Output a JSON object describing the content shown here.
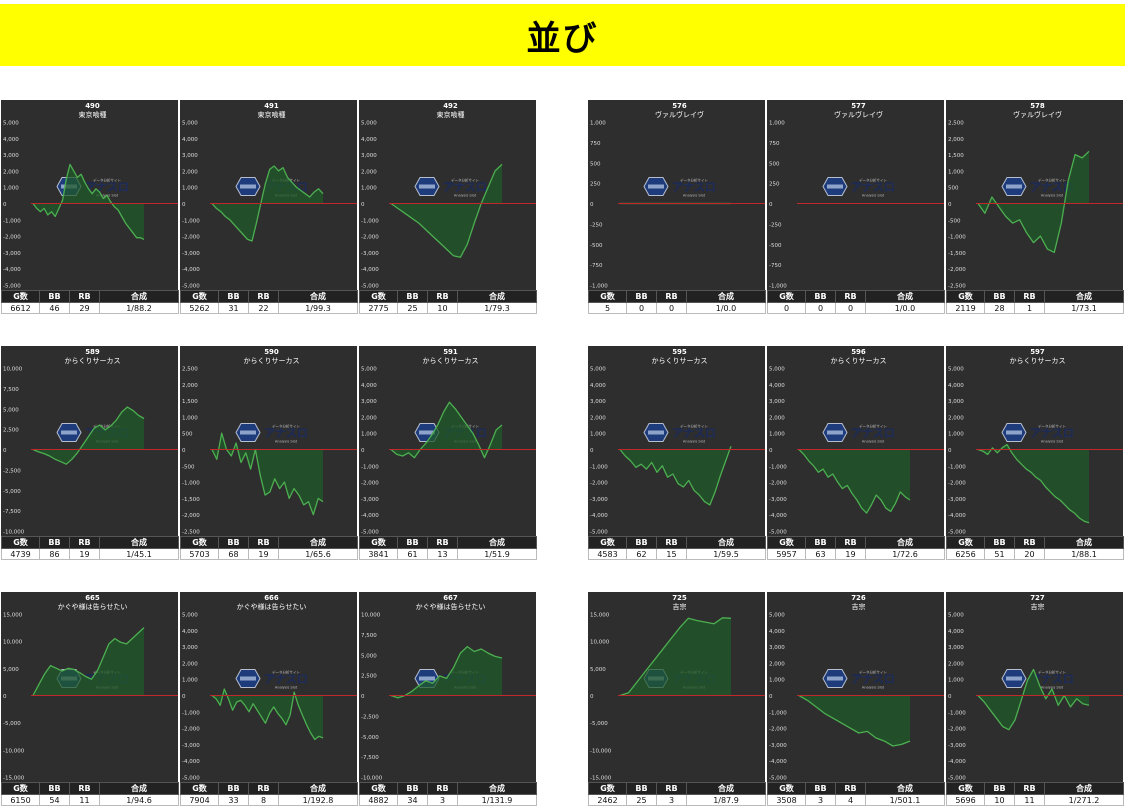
{
  "banner": {
    "title": "並び"
  },
  "table_headers": [
    "G数",
    "BB",
    "RB",
    "合成"
  ],
  "watermark": {
    "text": "アナスロ",
    "sub": "Analysis Slot",
    "top": "データ分析サイト"
  },
  "colors": {
    "banner": "#ffff00",
    "panel_bg": "#2e2e2e",
    "line": "#4caf50",
    "fill": "#1f5a2a",
    "zero_line": "#c0282b"
  },
  "chart_data": [
    {
      "type": "area",
      "title": "490",
      "subtitle": "東京喰種",
      "ylim": [
        -5000,
        5000
      ],
      "ticks": [
        5000,
        4000,
        3000,
        2000,
        1000,
        0,
        -1000,
        -2000,
        -3000,
        -4000,
        -5000
      ],
      "tick_labels": [
        "5,000",
        "4,000",
        "3,000",
        "2,000",
        "1,000",
        "0",
        "-1,000",
        "-2,000",
        "-3,000",
        "-4,000",
        "-5,000"
      ],
      "y": [
        0,
        -300,
        -500,
        -300,
        -700,
        -500,
        -800,
        -300,
        200,
        1500,
        2400,
        2000,
        1600,
        1800,
        1300,
        900,
        600,
        900,
        700,
        300,
        500,
        100,
        -200,
        -400,
        -800,
        -1200,
        -1500,
        -1800,
        -2100,
        -2100,
        -2200
      ],
      "stats": {
        "g": "6612",
        "bb": "46",
        "rb": "29",
        "ratio": "1/88.2"
      }
    },
    {
      "type": "area",
      "title": "491",
      "subtitle": "東京喰種",
      "ylim": [
        -5000,
        5000
      ],
      "ticks": [
        5000,
        4000,
        3000,
        2000,
        1000,
        0,
        -1000,
        -2000,
        -3000,
        -4000,
        -5000
      ],
      "tick_labels": [
        "5,000",
        "4,000",
        "3,000",
        "2,000",
        "1,000",
        "0",
        "-1,000",
        "-2,000",
        "-3,000",
        "-4,000",
        "-5,000"
      ],
      "y": [
        0,
        -300,
        -500,
        -800,
        -1000,
        -1300,
        -1600,
        -1900,
        -2200,
        -2300,
        -1200,
        0,
        1200,
        2100,
        2300,
        2000,
        2200,
        1600,
        1300,
        1000,
        800,
        600,
        400,
        700,
        900,
        600
      ],
      "stats": {
        "g": "5262",
        "bb": "31",
        "rb": "22",
        "ratio": "1/99.3"
      }
    },
    {
      "type": "area",
      "title": "492",
      "subtitle": "東京喰種",
      "ylim": [
        -5000,
        5000
      ],
      "ticks": [
        5000,
        4000,
        3000,
        2000,
        1000,
        0,
        -1000,
        -2000,
        -3000,
        -4000,
        -5000
      ],
      "tick_labels": [
        "5,000",
        "4,000",
        "3,000",
        "2,000",
        "1,000",
        "0",
        "-1,000",
        "-2,000",
        "-3,000",
        "-4,000",
        "-5,000"
      ],
      "y": [
        0,
        -300,
        -600,
        -900,
        -1200,
        -1600,
        -2000,
        -2400,
        -2800,
        -3200,
        -3300,
        -2500,
        -1200,
        0,
        1000,
        2000,
        2400
      ],
      "stats": {
        "g": "2775",
        "bb": "25",
        "rb": "10",
        "ratio": "1/79.3"
      }
    },
    {
      "type": "area",
      "title": "576",
      "subtitle": "ヴァルヴレイヴ",
      "ylim": [
        -1000,
        1000
      ],
      "ticks": [
        1000,
        750,
        500,
        250,
        0,
        -250,
        -500,
        -750,
        -1000
      ],
      "tick_labels": [
        "1,000",
        "750",
        "500",
        "250",
        "0",
        "-250",
        "-500",
        "-750",
        "-1,000"
      ],
      "y": [
        0,
        0
      ],
      "stats": {
        "g": "5",
        "bb": "0",
        "rb": "0",
        "ratio": "1/0.0"
      }
    },
    {
      "type": "area",
      "title": "577",
      "subtitle": "ヴァルヴレイヴ",
      "ylim": [
        -1000,
        1000
      ],
      "ticks": [
        1000,
        750,
        500,
        250,
        0,
        -250,
        -500,
        -750,
        -1000
      ],
      "tick_labels": [
        "1,000",
        "750",
        "500",
        "250",
        "0",
        "-250",
        "-500",
        "-750",
        "-1,000"
      ],
      "y": [],
      "stats": {
        "g": "0",
        "bb": "0",
        "rb": "0",
        "ratio": "1/0.0"
      }
    },
    {
      "type": "area",
      "title": "578",
      "subtitle": "ヴァルヴレイヴ",
      "ylim": [
        -2500,
        2500
      ],
      "ticks": [
        2500,
        2000,
        1500,
        1000,
        500,
        0,
        -500,
        -1000,
        -1500,
        -2000,
        -2500
      ],
      "tick_labels": [
        "2,500",
        "2,000",
        "1,500",
        "1,000",
        "500",
        "0",
        "-500",
        "-1,000",
        "-1,500",
        "-2,000",
        "-2,500"
      ],
      "y": [
        0,
        -300,
        200,
        -100,
        -400,
        -600,
        -500,
        -900,
        -1200,
        -1000,
        -1400,
        -1500,
        -600,
        700,
        1500,
        1400,
        1600
      ],
      "stats": {
        "g": "2119",
        "bb": "28",
        "rb": "1",
        "ratio": "1/73.1"
      }
    },
    {
      "type": "area",
      "title": "589",
      "subtitle": "からくりサーカス",
      "ylim": [
        -10000,
        10000
      ],
      "ticks": [
        10000,
        7500,
        5000,
        2500,
        0,
        -2500,
        -5000,
        -7500,
        -10000
      ],
      "tick_labels": [
        "10,000",
        "7,500",
        "5,000",
        "2,500",
        "0",
        "-2,500",
        "-5,000",
        "-7,500",
        "-10,000"
      ],
      "y": [
        0,
        -300,
        -500,
        -800,
        -1200,
        -1500,
        -1800,
        -1200,
        -400,
        600,
        1600,
        2600,
        3000,
        2400,
        2900,
        3600,
        4600,
        5200,
        4800,
        4200,
        3800
      ],
      "stats": {
        "g": "4739",
        "bb": "86",
        "rb": "19",
        "ratio": "1/45.1"
      }
    },
    {
      "type": "area",
      "title": "590",
      "subtitle": "からくりサーカス",
      "ylim": [
        -2500,
        2500
      ],
      "ticks": [
        2500,
        2000,
        1500,
        1000,
        500,
        0,
        -500,
        -1000,
        -1500,
        -2000,
        -2500
      ],
      "tick_labels": [
        "2,500",
        "2,000",
        "1,500",
        "1,000",
        "500",
        "0",
        "-500",
        "-1,000",
        "-1,500",
        "-2,000",
        "-2,500"
      ],
      "y": [
        0,
        -300,
        500,
        0,
        -200,
        200,
        -400,
        -100,
        -600,
        0,
        -800,
        -1400,
        -1300,
        -900,
        -1200,
        -1000,
        -1500,
        -1200,
        -1400,
        -1700,
        -1600,
        -2000,
        -1500,
        -1600
      ],
      "stats": {
        "g": "5703",
        "bb": "68",
        "rb": "19",
        "ratio": "1/65.6"
      }
    },
    {
      "type": "area",
      "title": "591",
      "subtitle": "からくりサーカス",
      "ylim": [
        -5000,
        5000
      ],
      "ticks": [
        5000,
        4000,
        3000,
        2000,
        1000,
        0,
        -1000,
        -2000,
        -3000,
        -4000,
        -5000
      ],
      "tick_labels": [
        "5,000",
        "4,000",
        "3,000",
        "2,000",
        "1,000",
        "0",
        "-1,000",
        "-2,000",
        "-3,000",
        "-4,000",
        "-5,000"
      ],
      "y": [
        0,
        -300,
        -400,
        -200,
        -500,
        0,
        400,
        900,
        1500,
        2300,
        2900,
        2500,
        2000,
        1500,
        1000,
        300,
        -500,
        300,
        1200,
        1500
      ],
      "stats": {
        "g": "3841",
        "bb": "61",
        "rb": "13",
        "ratio": "1/51.9"
      }
    },
    {
      "type": "area",
      "title": "595",
      "subtitle": "からくりサーカス",
      "ylim": [
        -5000,
        5000
      ],
      "ticks": [
        5000,
        4000,
        3000,
        2000,
        1000,
        0,
        -1000,
        -2000,
        -3000,
        -4000,
        -5000
      ],
      "tick_labels": [
        "5,000",
        "4,000",
        "3,000",
        "2,000",
        "1,000",
        "0",
        "-1,000",
        "-2,000",
        "-3,000",
        "-4,000",
        "-5,000"
      ],
      "y": [
        0,
        -400,
        -700,
        -1100,
        -900,
        -1200,
        -800,
        -1400,
        -1000,
        -1700,
        -1500,
        -2100,
        -2300,
        -1900,
        -2500,
        -2800,
        -3200,
        -3400,
        -2600,
        -1600,
        -700,
        200
      ],
      "stats": {
        "g": "4583",
        "bb": "62",
        "rb": "15",
        "ratio": "1/59.5"
      }
    },
    {
      "type": "area",
      "title": "596",
      "subtitle": "からくりサーカス",
      "ylim": [
        -5000,
        5000
      ],
      "ticks": [
        5000,
        4000,
        3000,
        2000,
        1000,
        0,
        -1000,
        -2000,
        -3000,
        -4000,
        -5000
      ],
      "tick_labels": [
        "5,000",
        "4,000",
        "3,000",
        "2,000",
        "1,000",
        "0",
        "-1,000",
        "-2,000",
        "-3,000",
        "-4,000",
        "-5,000"
      ],
      "y": [
        0,
        -300,
        -700,
        -1000,
        -1400,
        -1200,
        -1700,
        -1500,
        -2000,
        -2400,
        -2200,
        -2700,
        -3100,
        -3600,
        -3900,
        -3400,
        -2800,
        -3100,
        -3600,
        -3800,
        -3300,
        -2600,
        -2900,
        -3100
      ],
      "stats": {
        "g": "5957",
        "bb": "63",
        "rb": "19",
        "ratio": "1/72.6"
      }
    },
    {
      "type": "area",
      "title": "597",
      "subtitle": "からくりサーカス",
      "ylim": [
        -5000,
        5000
      ],
      "ticks": [
        5000,
        4000,
        3000,
        2000,
        1000,
        0,
        -1000,
        -2000,
        -3000,
        -4000,
        -5000
      ],
      "tick_labels": [
        "5,000",
        "4,000",
        "3,000",
        "2,000",
        "1,000",
        "0",
        "-1,000",
        "-2,000",
        "-3,000",
        "-4,000",
        "-5,000"
      ],
      "y": [
        0,
        -100,
        -300,
        100,
        -200,
        100,
        300,
        -200,
        -600,
        -900,
        -1200,
        -1400,
        -1700,
        -1900,
        -2300,
        -2600,
        -2900,
        -3100,
        -3400,
        -3700,
        -3900,
        -4200,
        -4400,
        -4500
      ],
      "stats": {
        "g": "6256",
        "bb": "51",
        "rb": "20",
        "ratio": "1/88.1"
      }
    },
    {
      "type": "area",
      "title": "665",
      "subtitle": "かぐや様は告らせたい",
      "ylim": [
        -15000,
        15000
      ],
      "ticks": [
        15000,
        10000,
        5000,
        0,
        -5000,
        -10000,
        -15000
      ],
      "tick_labels": [
        "15,000",
        "10,000",
        "5,000",
        "0",
        "-5,000",
        "-10,000",
        "-15,000"
      ],
      "y": [
        0,
        2000,
        4000,
        5500,
        5000,
        4500,
        5000,
        4800,
        4200,
        3500,
        3000,
        4500,
        7000,
        9500,
        10500,
        9800,
        9500,
        10500,
        11500,
        12500
      ],
      "stats": {
        "g": "6150",
        "bb": "54",
        "rb": "11",
        "ratio": "1/94.6"
      }
    },
    {
      "type": "area",
      "title": "666",
      "subtitle": "かぐや様は告らせたい",
      "ylim": [
        -5000,
        5000
      ],
      "ticks": [
        5000,
        4000,
        3000,
        2000,
        1000,
        0,
        -1000,
        -2000,
        -3000,
        -4000,
        -5000
      ],
      "tick_labels": [
        "5,000",
        "4,000",
        "3,000",
        "2,000",
        "1,000",
        "0",
        "-1,000",
        "-2,000",
        "-3,000",
        "-4,000",
        "-5,000"
      ],
      "y": [
        0,
        -200,
        -600,
        400,
        -200,
        -900,
        -400,
        -300,
        -600,
        -1000,
        -500,
        -900,
        -1300,
        -1700,
        -1100,
        -700,
        -1100,
        -1400,
        -1800,
        -1200,
        200,
        -600,
        -1200,
        -1800,
        -2300,
        -2700,
        -2500,
        -2600
      ],
      "stats": {
        "g": "7904",
        "bb": "33",
        "rb": "8",
        "ratio": "1/192.8"
      }
    },
    {
      "type": "area",
      "title": "667",
      "subtitle": "かぐや様は告らせたい",
      "ylim": [
        -10000,
        10000
      ],
      "ticks": [
        10000,
        7500,
        5000,
        2500,
        0,
        -2500,
        -5000,
        -7500,
        -10000
      ],
      "tick_labels": [
        "10,000",
        "7,500",
        "5,000",
        "2,500",
        "0",
        "-2,500",
        "-5,000",
        "-7,500",
        "-10,000"
      ],
      "y": [
        0,
        -300,
        0,
        500,
        1200,
        1800,
        1500,
        2400,
        2100,
        3400,
        5200,
        6000,
        5400,
        5700,
        5200,
        4800,
        4600
      ],
      "stats": {
        "g": "4882",
        "bb": "34",
        "rb": "3",
        "ratio": "1/131.9"
      }
    },
    {
      "type": "area",
      "title": "725",
      "subtitle": "吉宗",
      "ylim": [
        -15000,
        15000
      ],
      "ticks": [
        15000,
        10000,
        5000,
        0,
        -5000,
        -10000,
        -15000
      ],
      "tick_labels": [
        "15,000",
        "10,000",
        "5,000",
        "0",
        "-5,000",
        "-10,000",
        "-15,000"
      ],
      "y": [
        0,
        500,
        2500,
        4500,
        6500,
        8500,
        10500,
        12500,
        14200,
        13800,
        13500,
        13200,
        14300,
        14200
      ],
      "stats": {
        "g": "2462",
        "bb": "25",
        "rb": "3",
        "ratio": "1/87.9"
      }
    },
    {
      "type": "area",
      "title": "726",
      "subtitle": "吉宗",
      "ylim": [
        -5000,
        5000
      ],
      "ticks": [
        5000,
        4000,
        3000,
        2000,
        1000,
        0,
        -1000,
        -2000,
        -3000,
        -4000,
        -5000
      ],
      "tick_labels": [
        "5,000",
        "4,000",
        "3,000",
        "2,000",
        "1,000",
        "0",
        "-1,000",
        "-2,000",
        "-3,000",
        "-4,000",
        "-5,000"
      ],
      "y": [
        0,
        -300,
        -700,
        -1100,
        -1400,
        -1700,
        -2000,
        -2300,
        -2200,
        -2600,
        -2800,
        -3100,
        -3000,
        -2800
      ],
      "stats": {
        "g": "3508",
        "bb": "3",
        "rb": "4",
        "ratio": "1/501.1"
      }
    },
    {
      "type": "area",
      "title": "727",
      "subtitle": "吉宗",
      "ylim": [
        -5000,
        5000
      ],
      "ticks": [
        5000,
        4000,
        3000,
        2000,
        1000,
        0,
        -1000,
        -2000,
        -3000,
        -4000,
        -5000
      ],
      "tick_labels": [
        "5,000",
        "4,000",
        "3,000",
        "2,000",
        "1,000",
        "0",
        "-1,000",
        "-2,000",
        "-3,000",
        "-4,000",
        "-5,000"
      ],
      "y": [
        0,
        -400,
        -900,
        -1400,
        -1900,
        -2100,
        -1500,
        -300,
        900,
        1600,
        600,
        -200,
        400,
        -600,
        0,
        -700,
        -200,
        -500,
        -600
      ],
      "stats": {
        "g": "5696",
        "bb": "10",
        "rb": "11",
        "ratio": "1/271.2"
      }
    }
  ]
}
